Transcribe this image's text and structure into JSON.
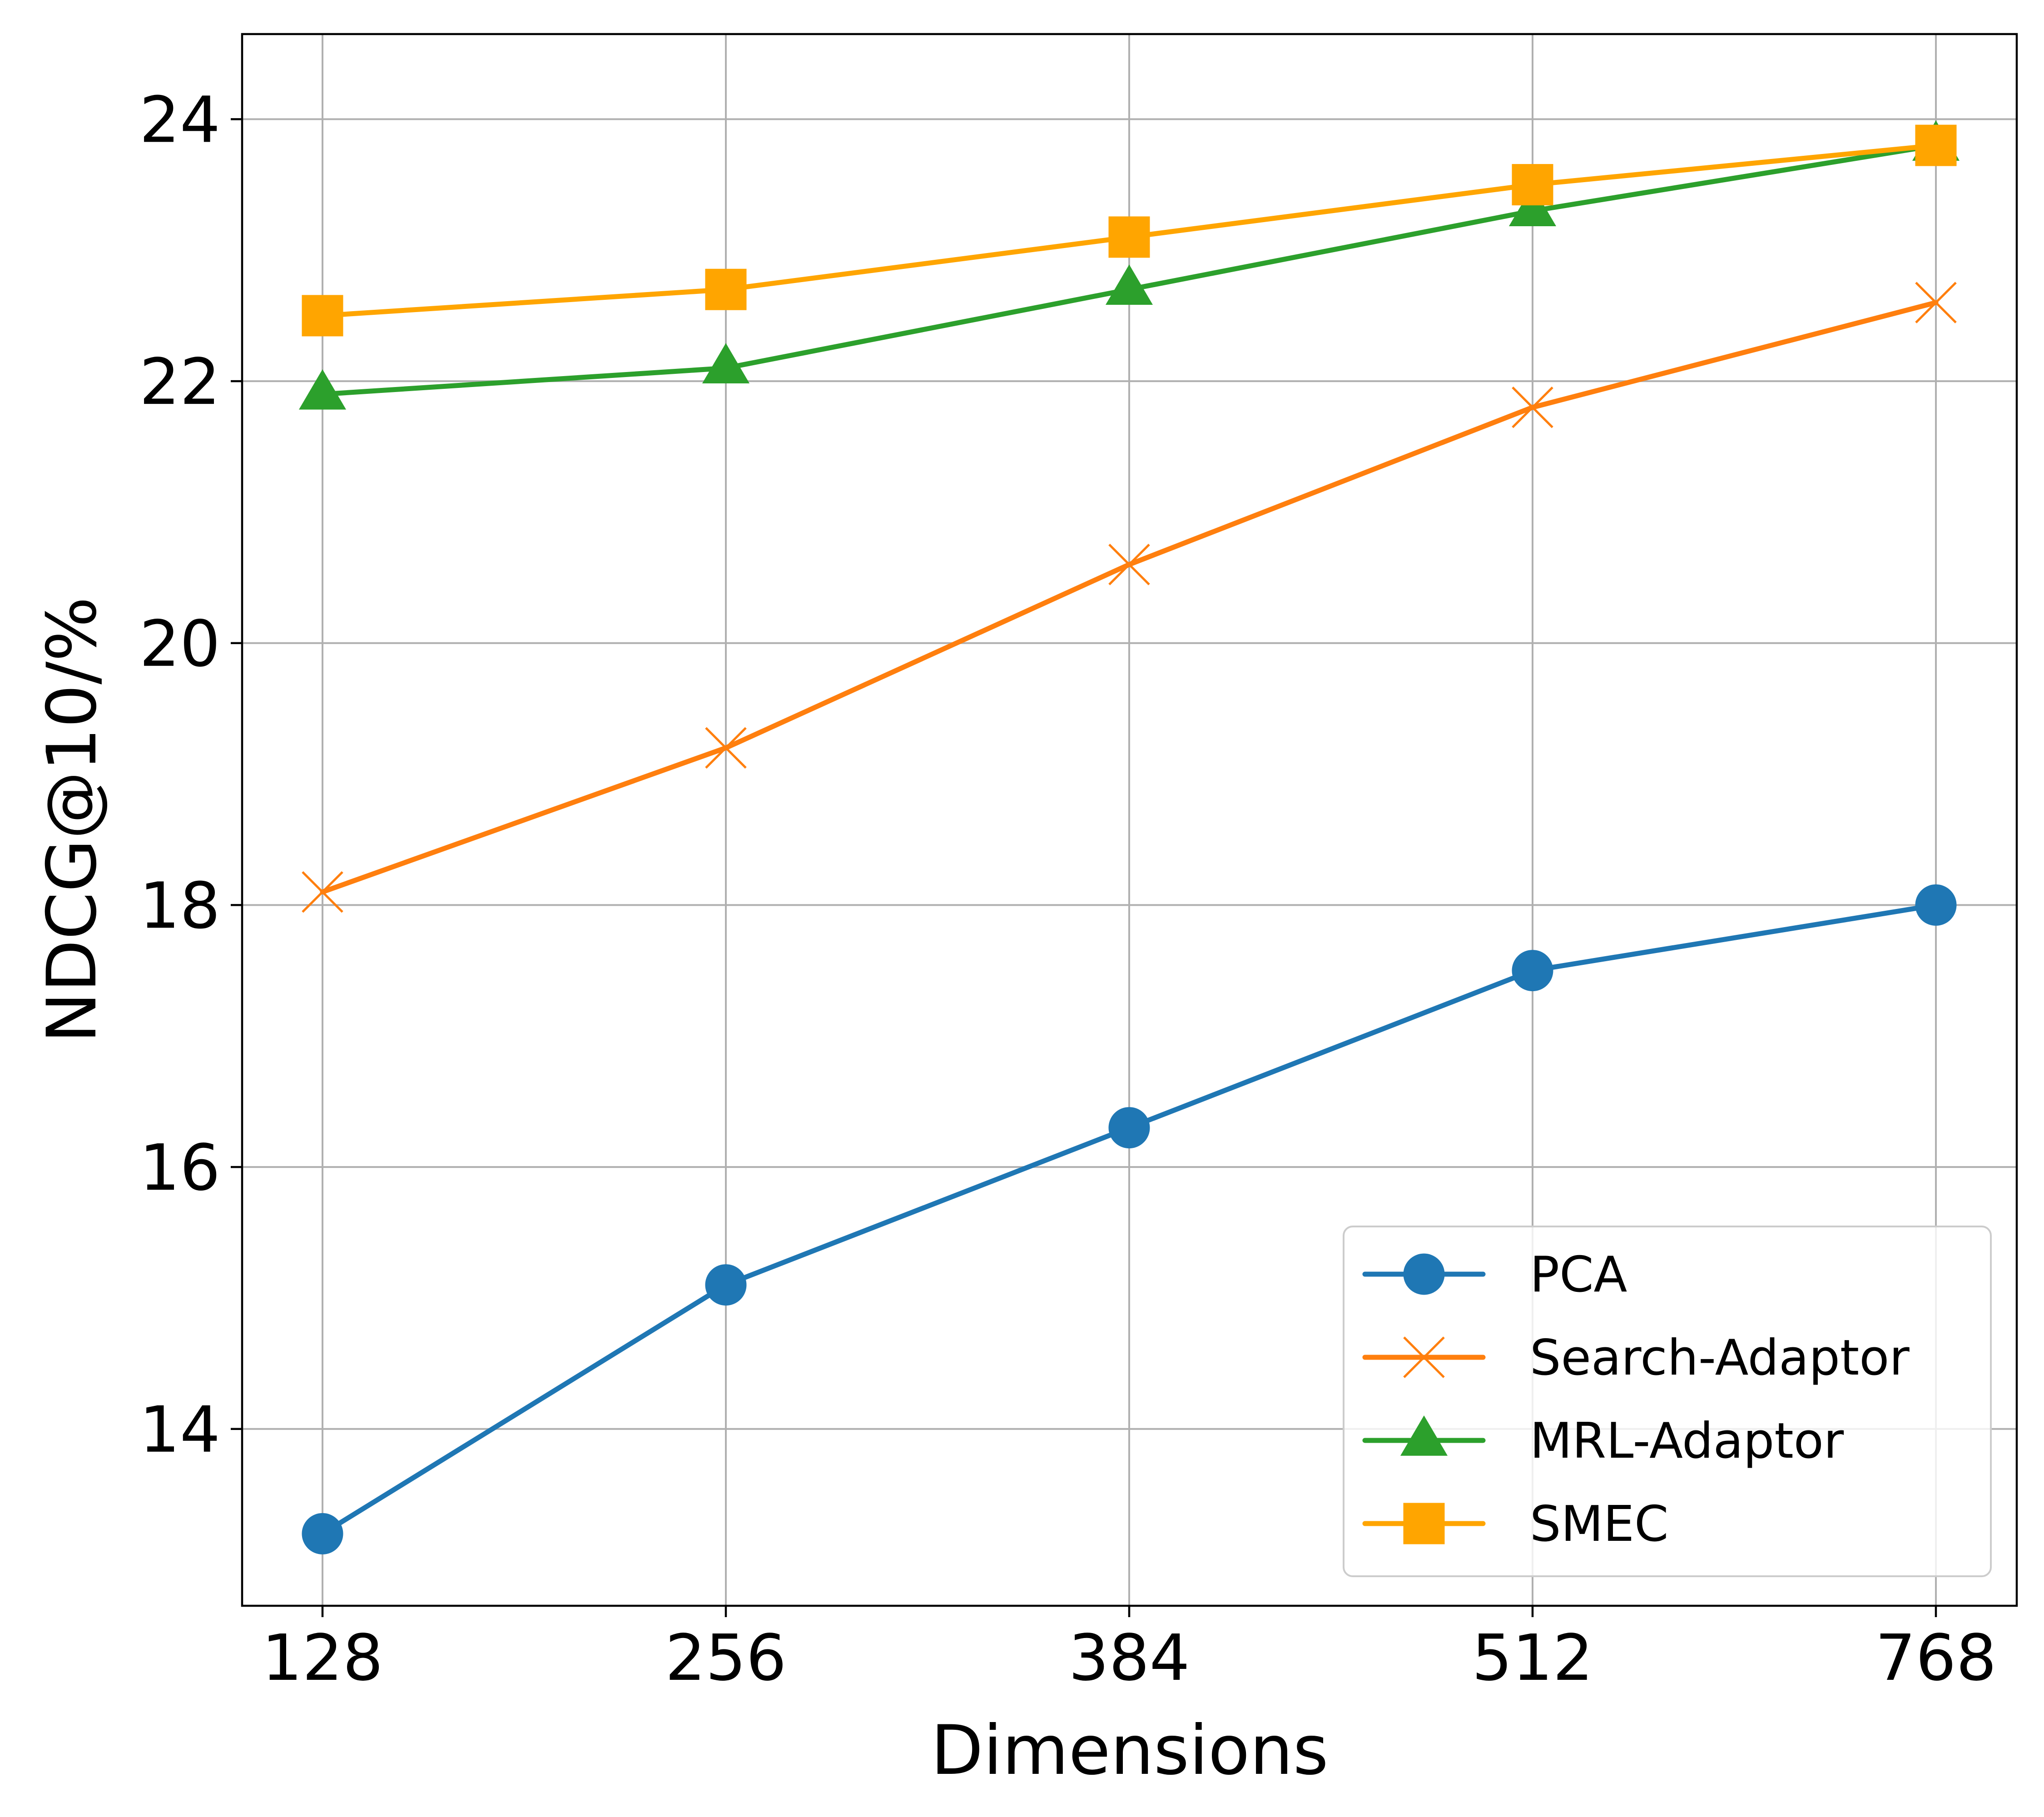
{
  "chart_data": {
    "type": "line",
    "title": "",
    "xlabel": "Dimensions",
    "ylabel": "NDCG@10/%",
    "categories": [
      "128",
      "256",
      "384",
      "512",
      "768"
    ],
    "ylim": [
      12.65,
      24.65
    ],
    "yticks": [
      14,
      16,
      18,
      20,
      22,
      24
    ],
    "grid": true,
    "legend_position": "lower-right",
    "series": [
      {
        "name": "PCA",
        "marker": "circle",
        "color": "#1f77b4",
        "values": [
          13.2,
          15.1,
          16.3,
          17.5,
          18.0
        ]
      },
      {
        "name": "Search-Adaptor",
        "marker": "x",
        "color": "#ff7f0e",
        "values": [
          18.1,
          19.2,
          20.6,
          21.8,
          22.6
        ]
      },
      {
        "name": "MRL-Adaptor",
        "marker": "triangle",
        "color": "#2ca02c",
        "values": [
          21.9,
          22.1,
          22.7,
          23.3,
          23.8
        ]
      },
      {
        "name": "SMEC",
        "marker": "square",
        "color": "#ffa500",
        "values": [
          22.5,
          22.7,
          23.1,
          23.5,
          23.8
        ]
      }
    ]
  }
}
